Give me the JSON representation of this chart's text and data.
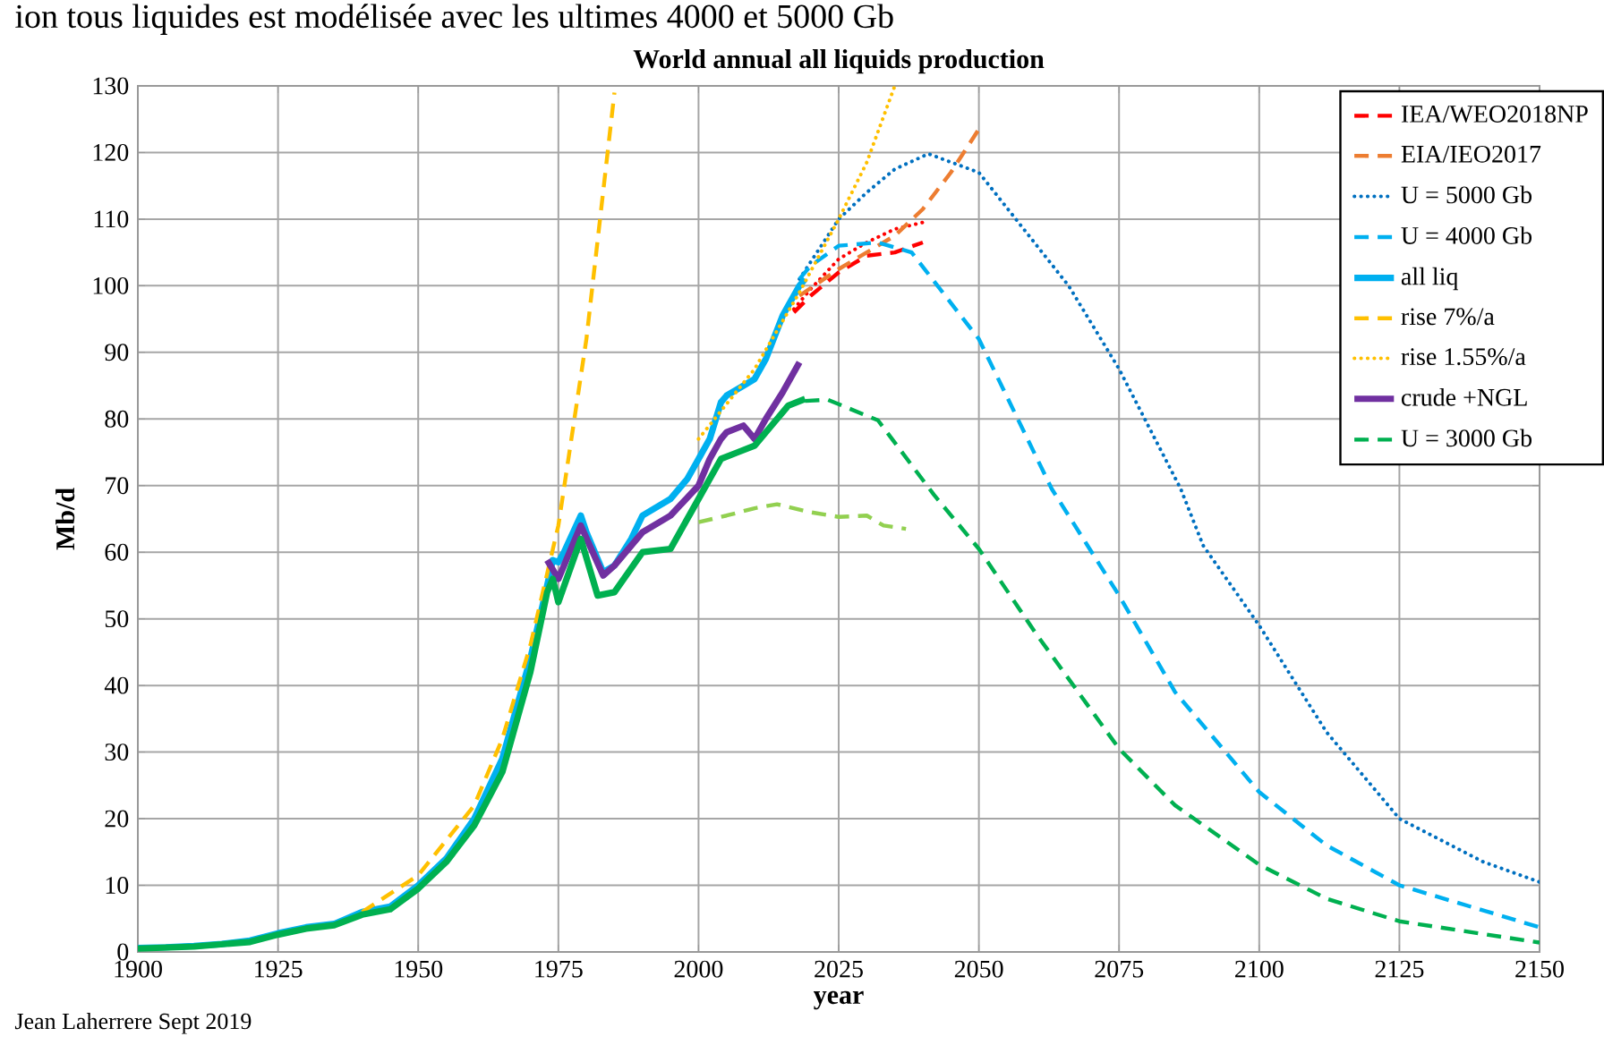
{
  "chart_data": {
    "type": "line",
    "title": "World annual all liquids production",
    "xlabel": "year",
    "ylabel": "Mb/d",
    "annotations": [
      "ion tous liquides est modélisée avec les ultimes 4000 et 5000 Gb",
      "Jean Laherrere Sept 2019"
    ],
    "xlim": [
      1900,
      2150
    ],
    "ylim": [
      0,
      130
    ],
    "xticks": [
      1900,
      1925,
      1950,
      1975,
      2000,
      2025,
      2050,
      2075,
      2100,
      2125,
      2150
    ],
    "yticks": [
      0,
      10,
      20,
      30,
      40,
      50,
      60,
      70,
      80,
      90,
      100,
      110,
      120,
      130
    ],
    "grid": true,
    "legend": "top right",
    "marker": "none",
    "series": [
      {
        "color": "#ff0000",
        "line_style": "dotted",
        "x": [
          2017,
          2020,
          2025,
          2030,
          2035,
          2040
        ],
        "values": [
          96.5,
          99.5,
          104,
          106.5,
          108.5,
          109.5
        ]
      },
      {
        "name": "IEA/WEO2018NP",
        "color": "#ff0000",
        "line_style": "dashed",
        "x": [
          2017,
          2020,
          2025,
          2030,
          2035,
          2040
        ],
        "values": [
          96,
          98.5,
          102,
          104.5,
          105,
          106.5
        ]
      },
      {
        "name": "EIA/IEO2017",
        "color": "#ed7d31",
        "line_style": "dashed",
        "x": [
          2018,
          2025,
          2030,
          2035,
          2040,
          2045,
          2050
        ],
        "values": [
          98.5,
          102.5,
          105,
          107.5,
          111.5,
          117,
          123.5
        ]
      },
      {
        "name": "U = 5000 Gb",
        "color": "#0070c0",
        "line_style": "dotted",
        "x": [
          2018,
          2025,
          2030,
          2035,
          2041,
          2050,
          2066,
          2075,
          2086,
          2090,
          2100,
          2112,
          2125,
          2140,
          2150
        ],
        "values": [
          101,
          110,
          114,
          117.5,
          119.8,
          117,
          100,
          87.5,
          69.5,
          61,
          49,
          33,
          20,
          13.5,
          10.5
        ]
      },
      {
        "name": "U = 4000 Gb",
        "color": "#00b0f0",
        "line_style": "dashed",
        "x": [
          2018,
          2020,
          2025,
          2032,
          2038,
          2050,
          2063,
          2075,
          2085,
          2100,
          2112,
          2125,
          2150
        ],
        "values": [
          101,
          103,
          106,
          106.5,
          105,
          92,
          69.5,
          53.5,
          39,
          24,
          16,
          10,
          3.7
        ]
      },
      {
        "name": "all liq",
        "color": "#00b0f0",
        "line_style": "solid",
        "x": [
          1900,
          1905,
          1910,
          1915,
          1920,
          1925,
          1930,
          1932,
          1935,
          1940,
          1945,
          1950,
          1955,
          1960,
          1965,
          1970,
          1973,
          1974,
          1975,
          1976,
          1979,
          1980,
          1983,
          1985,
          1988,
          1990,
          1995,
          1998,
          2000,
          2002,
          2004,
          2005,
          2008,
          2010,
          2012,
          2015,
          2018,
          2019
        ],
        "values": [
          0.6,
          0.7,
          0.9,
          1.2,
          1.7,
          2.8,
          3.7,
          3.9,
          4.2,
          6,
          6.8,
          10,
          14,
          20,
          29,
          44,
          55,
          58.8,
          58.5,
          60,
          65.5,
          63,
          57,
          58,
          62,
          65.5,
          68,
          71,
          74,
          77,
          82.5,
          83.5,
          85,
          86,
          89,
          95.5,
          100,
          101
        ]
      },
      {
        "name": "rise 7%/a",
        "color": "#ffc000",
        "line_style": "dashed",
        "x": [
          1940,
          1950,
          1960,
          1965,
          1970,
          1975,
          1980,
          1985
        ],
        "values": [
          6,
          11.5,
          22,
          32,
          46,
          64,
          92,
          129
        ]
      },
      {
        "name": "rise 1.55%/a",
        "color": "#ffc000",
        "line_style": "dotted",
        "x": [
          2000,
          2010,
          2018,
          2025,
          2030,
          2035
        ],
        "values": [
          77,
          87.5,
          99,
          110,
          118.5,
          130
        ]
      },
      {
        "name": "crude +NGL",
        "color": "#7030a0",
        "line_style": "solid",
        "x": [
          1973,
          1975,
          1979,
          1983,
          1985,
          1990,
          1995,
          2000,
          2002,
          2004,
          2005,
          2008,
          2010,
          2012,
          2015,
          2018
        ],
        "values": [
          58.8,
          56,
          64,
          56.5,
          58,
          63,
          65.5,
          70,
          74,
          77,
          78,
          79,
          77,
          80,
          84,
          88.5
        ]
      },
      {
        "name": "U = 3000 Gb",
        "color": "#00b050",
        "line_style": "dashed",
        "x": [
          2019,
          2023,
          2032,
          2042,
          2050,
          2060,
          2075,
          2085,
          2100,
          2112,
          2125,
          2150
        ],
        "values": [
          82.7,
          82.9,
          79.8,
          68.6,
          60.5,
          48,
          30.5,
          22,
          13.1,
          8,
          4.6,
          1.4
        ]
      },
      {
        "color": "#00b050",
        "line_style": "solid",
        "x": [
          1900,
          1910,
          1920,
          1925,
          1930,
          1935,
          1940,
          1945,
          1950,
          1955,
          1960,
          1965,
          1970,
          1973,
          1974,
          1975,
          1979,
          1982,
          1985,
          1990,
          1995,
          2000,
          2002,
          2004,
          2007,
          2010,
          2013,
          2016,
          2019
        ],
        "values": [
          0.5,
          0.8,
          1.5,
          2.6,
          3.5,
          4,
          5.6,
          6.4,
          9.5,
          13.5,
          19,
          27,
          42,
          54,
          56,
          52.5,
          62,
          53.5,
          54,
          60,
          60.5,
          68,
          71,
          74,
          75,
          76,
          79,
          82,
          83
        ]
      },
      {
        "color": "#92d050",
        "line_style": "dashed",
        "x": [
          2000,
          2005,
          2010,
          2014,
          2020,
          2025,
          2030,
          2033,
          2037
        ],
        "values": [
          64.5,
          65.5,
          66.6,
          67.2,
          66,
          65.3,
          65.5,
          64,
          63.5
        ]
      }
    ]
  }
}
